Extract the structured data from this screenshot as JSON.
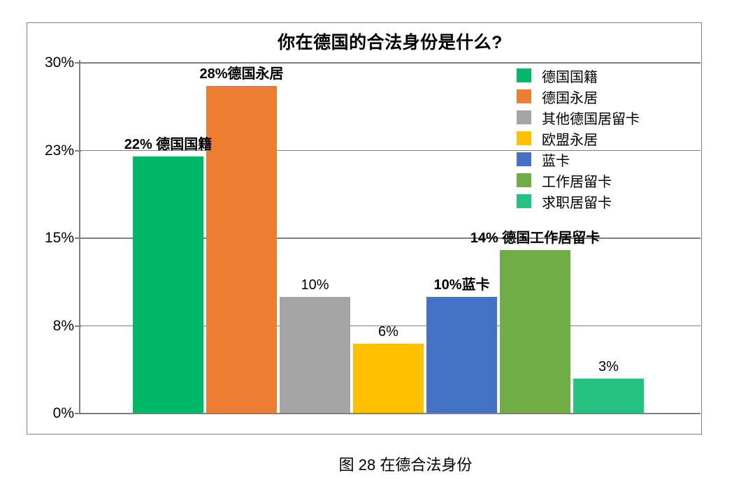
{
  "caption": "图 28 在德合法身份",
  "chart_data": {
    "type": "bar",
    "title": "你在德国的合法身份是什么?",
    "categories": [
      "德国国籍",
      "德国永居",
      "其他德国居留卡",
      "欧盟永居",
      "蓝卡",
      "工作居留卡",
      "求职居留卡"
    ],
    "values": [
      22,
      28,
      10,
      6,
      10,
      14,
      3
    ],
    "unit": "%",
    "bar_labels": [
      "22% 德国国籍",
      "28%德国永居",
      "10%",
      "6%",
      "10%蓝卡",
      "14% 德国工作居留卡",
      "3%"
    ],
    "bar_label_bold": [
      true,
      true,
      false,
      false,
      true,
      true,
      false
    ],
    "bar_colors": [
      "#00B868",
      "#ED7D31",
      "#A5A5A5",
      "#FFC000",
      "#4472C4",
      "#70AD47",
      "#26C281"
    ],
    "ylim": [
      0,
      30
    ],
    "yticks": [
      {
        "value": 0,
        "label": "0%"
      },
      {
        "value": 7.5,
        "label": "8%"
      },
      {
        "value": 15,
        "label": "15%"
      },
      {
        "value": 22.5,
        "label": "23%"
      },
      {
        "value": 30,
        "label": "30%"
      }
    ],
    "grid": true,
    "legend_position": "top-right",
    "legend": [
      {
        "label": "德国国籍",
        "color": "#00B868"
      },
      {
        "label": "德国永居",
        "color": "#ED7D31"
      },
      {
        "label": "其他德国居留卡",
        "color": "#A5A5A5"
      },
      {
        "label": "欧盟永居",
        "color": "#FFC000"
      },
      {
        "label": "蓝卡",
        "color": "#4472C4"
      },
      {
        "label": "工作居留卡",
        "color": "#70AD47"
      },
      {
        "label": "求职居留卡",
        "color": "#26C281"
      }
    ],
    "line_color": "#7F7F7F"
  }
}
